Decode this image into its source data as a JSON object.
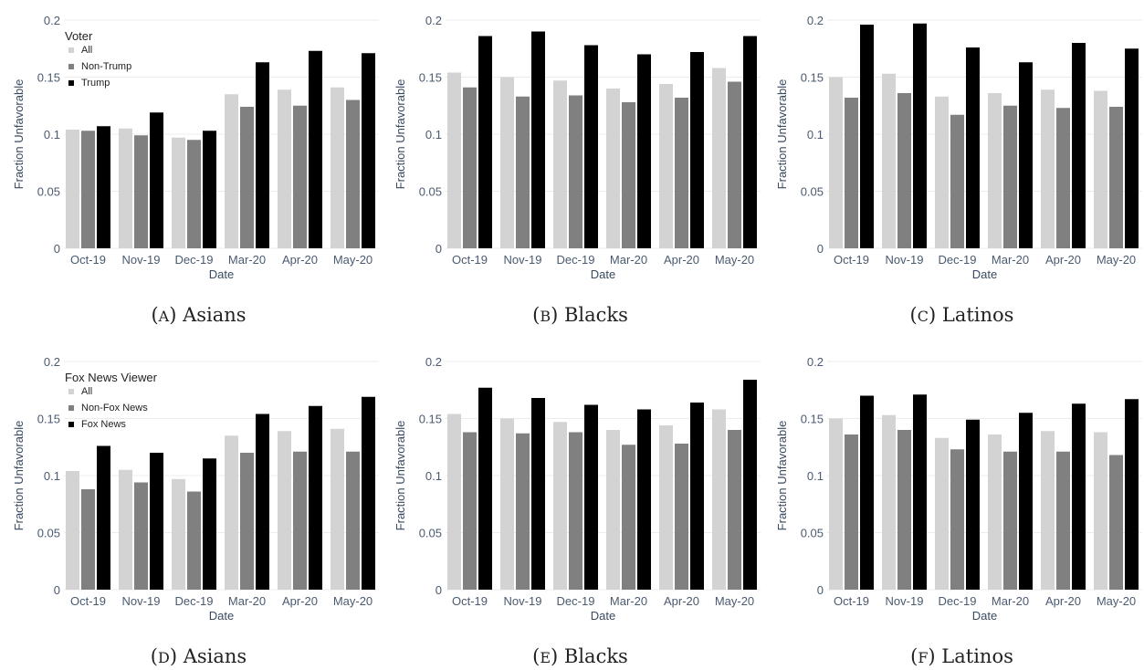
{
  "colors": {
    "All": "#d3d3d3",
    "Middle": "#808080",
    "Top": "#000000"
  },
  "chart_data": [
    {
      "type": "bar",
      "caption_letter": "A",
      "caption_text": "Asians",
      "xlabel": "Date",
      "ylabel": "Fraction Unfavorable",
      "ylim": [
        0,
        0.2
      ],
      "yticks": [
        "0",
        "0.05",
        "0.1",
        "0.15",
        "0.2"
      ],
      "categories": [
        "Oct-19",
        "Nov-19",
        "Dec-19",
        "Mar-20",
        "Apr-20",
        "May-20"
      ],
      "legend": {
        "title": "Voter",
        "placement": "top-left"
      },
      "series": [
        {
          "name": "All",
          "values": [
            0.104,
            0.105,
            0.097,
            0.135,
            0.139,
            0.141
          ]
        },
        {
          "name": "Non-Trump",
          "values": [
            0.103,
            0.099,
            0.095,
            0.124,
            0.125,
            0.13
          ]
        },
        {
          "name": "Trump",
          "values": [
            0.107,
            0.119,
            0.103,
            0.163,
            0.173,
            0.171
          ]
        }
      ]
    },
    {
      "type": "bar",
      "caption_letter": "B",
      "caption_text": "Blacks",
      "xlabel": "Date",
      "ylabel": "Fraction Unfavorable",
      "ylim": [
        0,
        0.2
      ],
      "yticks": [
        "0",
        "0.05",
        "0.1",
        "0.15",
        "0.2"
      ],
      "categories": [
        "Oct-19",
        "Nov-19",
        "Dec-19",
        "Mar-20",
        "Apr-20",
        "May-20"
      ],
      "series": [
        {
          "values": [
            0.154,
            0.15,
            0.147,
            0.14,
            0.144,
            0.158
          ]
        },
        {
          "values": [
            0.141,
            0.133,
            0.134,
            0.128,
            0.132,
            0.146
          ]
        },
        {
          "values": [
            0.186,
            0.19,
            0.178,
            0.17,
            0.172,
            0.186
          ]
        }
      ]
    },
    {
      "type": "bar",
      "caption_letter": "C",
      "caption_text": "Latinos",
      "xlabel": "Date",
      "ylabel": "Fraction Unfavorable",
      "ylim": [
        0,
        0.2
      ],
      "yticks": [
        "0",
        "0.05",
        "0.1",
        "0.15",
        "0.2"
      ],
      "categories": [
        "Oct-19",
        "Nov-19",
        "Dec-19",
        "Mar-20",
        "Apr-20",
        "May-20"
      ],
      "series": [
        {
          "values": [
            0.15,
            0.153,
            0.133,
            0.136,
            0.139,
            0.138
          ]
        },
        {
          "values": [
            0.132,
            0.136,
            0.117,
            0.125,
            0.123,
            0.124
          ]
        },
        {
          "values": [
            0.196,
            0.197,
            0.176,
            0.163,
            0.18,
            0.175
          ]
        }
      ]
    },
    {
      "type": "bar",
      "caption_letter": "D",
      "caption_text": "Asians",
      "xlabel": "Date",
      "ylabel": "Fraction Unfavorable",
      "ylim": [
        0,
        0.2
      ],
      "yticks": [
        "0",
        "0.05",
        "0.1",
        "0.15",
        "0.2"
      ],
      "categories": [
        "Oct-19",
        "Nov-19",
        "Dec-19",
        "Mar-20",
        "Apr-20",
        "May-20"
      ],
      "legend": {
        "title": "Fox News Viewer",
        "placement": "top-left"
      },
      "series": [
        {
          "name": "All",
          "values": [
            0.104,
            0.105,
            0.097,
            0.135,
            0.139,
            0.141
          ]
        },
        {
          "name": "Non-Fox News",
          "values": [
            0.088,
            0.094,
            0.086,
            0.12,
            0.121,
            0.121
          ]
        },
        {
          "name": "Fox News",
          "values": [
            0.126,
            0.12,
            0.115,
            0.154,
            0.161,
            0.169
          ]
        }
      ]
    },
    {
      "type": "bar",
      "caption_letter": "E",
      "caption_text": "Blacks",
      "xlabel": "Date",
      "ylabel": "Fraction Unfavorable",
      "ylim": [
        0,
        0.2
      ],
      "yticks": [
        "0",
        "0.05",
        "0.1",
        "0.15",
        "0.2"
      ],
      "categories": [
        "Oct-19",
        "Nov-19",
        "Dec-19",
        "Mar-20",
        "Apr-20",
        "May-20"
      ],
      "series": [
        {
          "values": [
            0.154,
            0.15,
            0.147,
            0.14,
            0.144,
            0.158
          ]
        },
        {
          "values": [
            0.138,
            0.137,
            0.138,
            0.127,
            0.128,
            0.14
          ]
        },
        {
          "values": [
            0.177,
            0.168,
            0.162,
            0.158,
            0.164,
            0.184
          ]
        }
      ]
    },
    {
      "type": "bar",
      "caption_letter": "F",
      "caption_text": "Latinos",
      "xlabel": "Date",
      "ylabel": "Fraction Unfavorable",
      "ylim": [
        0,
        0.2
      ],
      "yticks": [
        "0",
        "0.05",
        "0.1",
        "0.15",
        "0.2"
      ],
      "categories": [
        "Oct-19",
        "Nov-19",
        "Dec-19",
        "Mar-20",
        "Apr-20",
        "May-20"
      ],
      "series": [
        {
          "values": [
            0.15,
            0.153,
            0.133,
            0.136,
            0.139,
            0.138
          ]
        },
        {
          "values": [
            0.136,
            0.14,
            0.123,
            0.121,
            0.121,
            0.118
          ]
        },
        {
          "values": [
            0.17,
            0.171,
            0.149,
            0.155,
            0.163,
            0.167
          ]
        }
      ]
    }
  ]
}
